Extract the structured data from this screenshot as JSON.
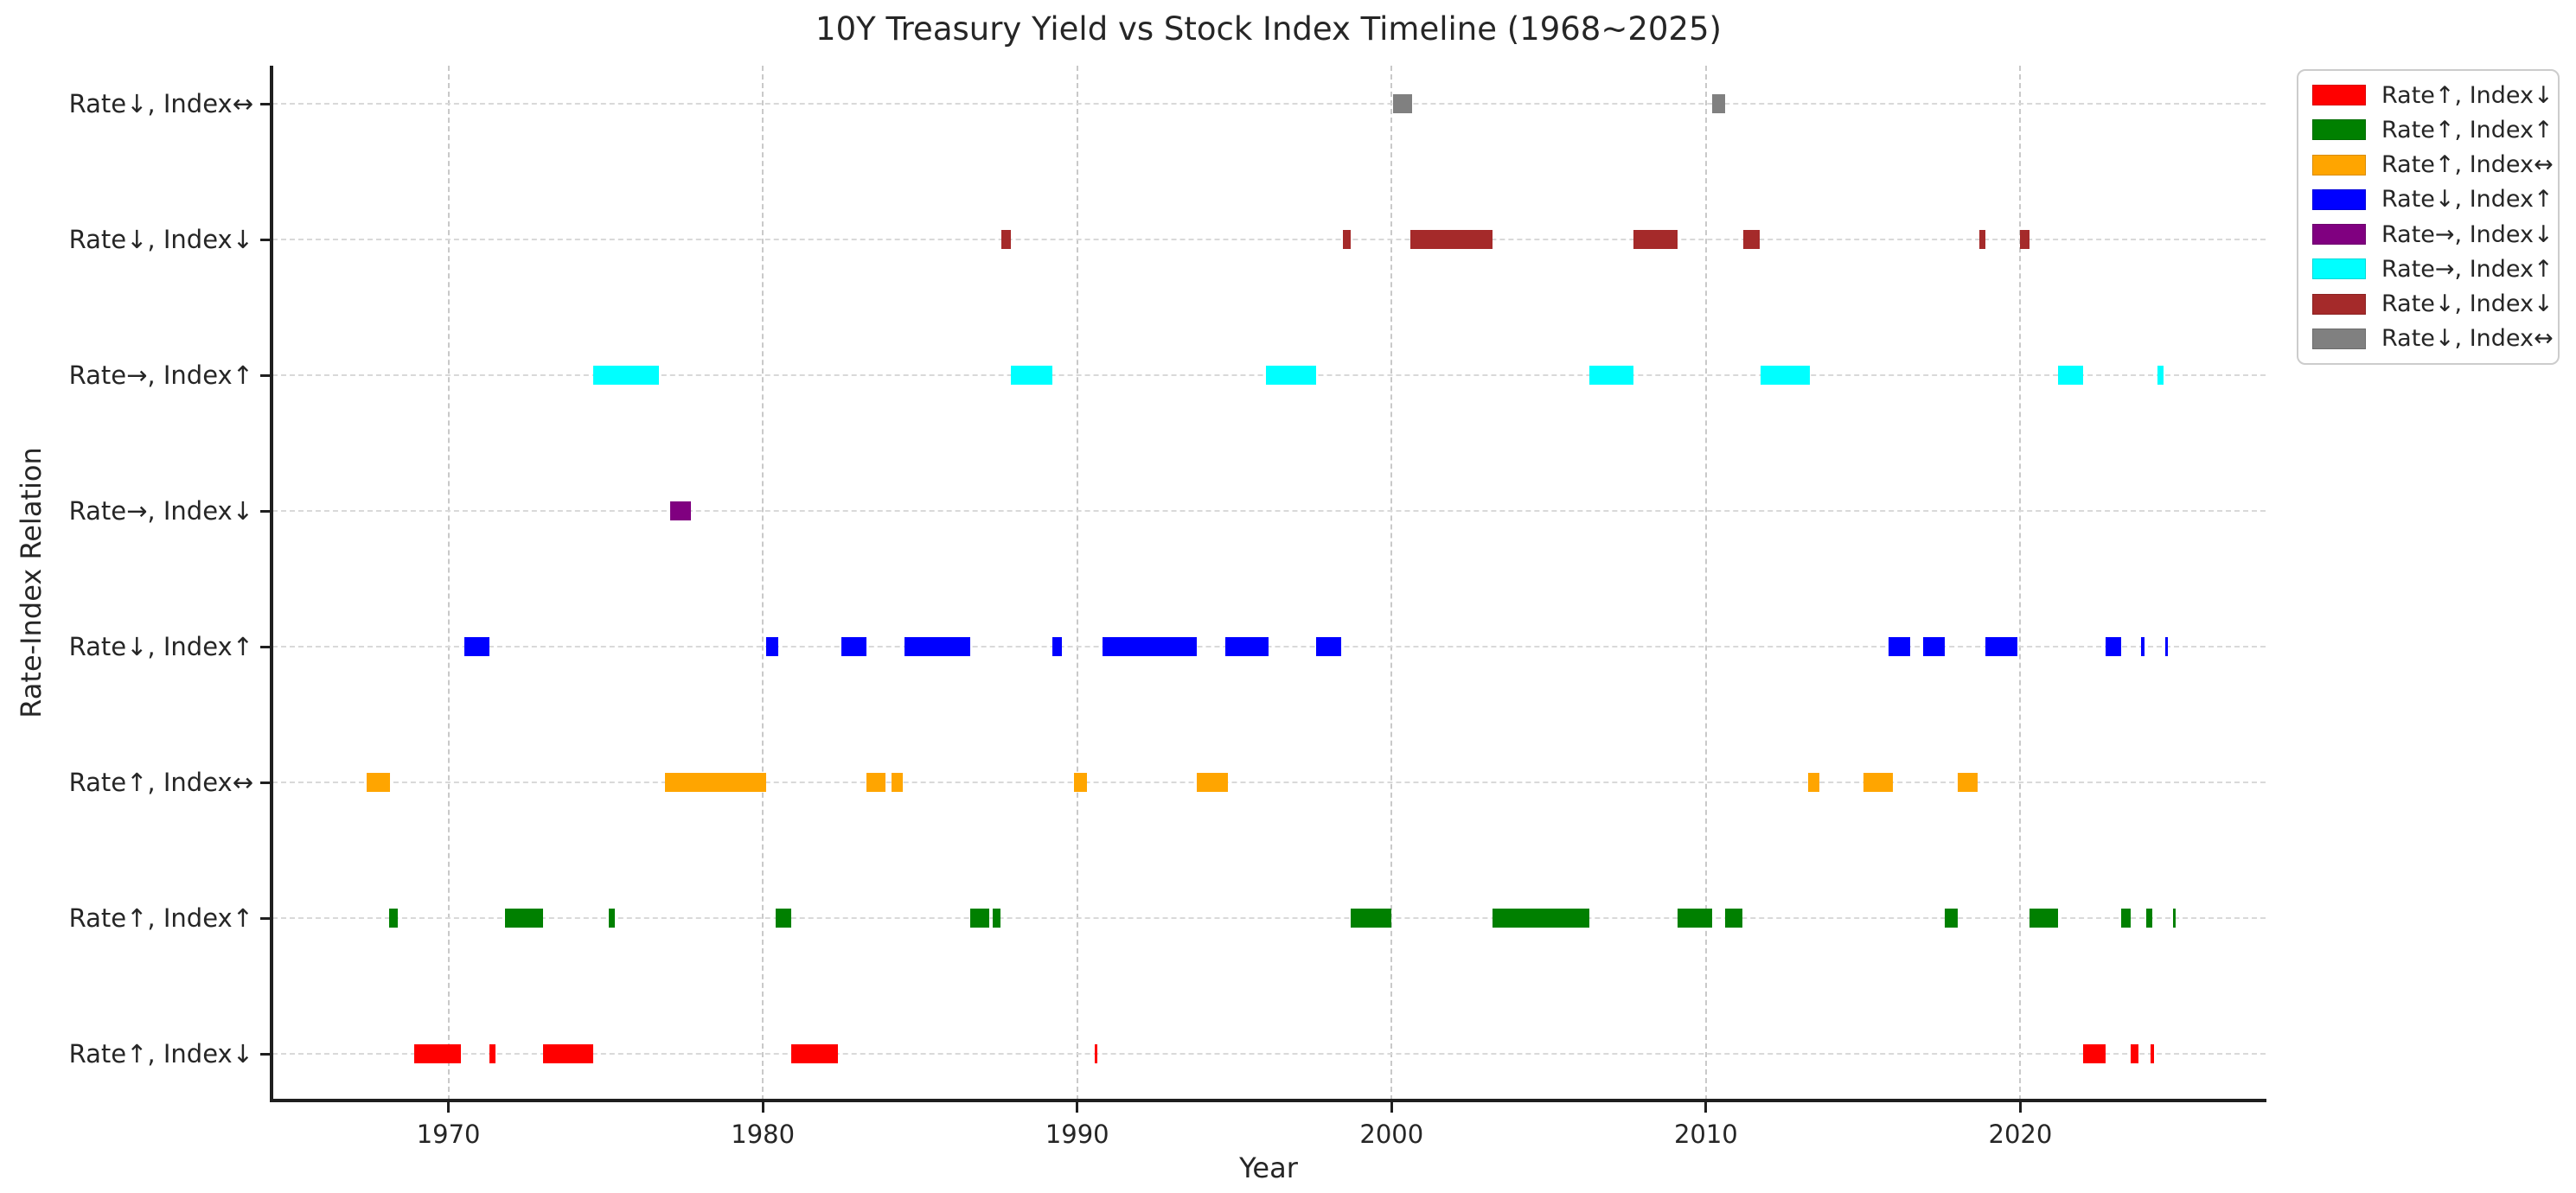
{
  "chart_data": {
    "type": "bar",
    "subtype": "horizontal-interval-timeline",
    "title": "10Y Treasury Yield vs Stock Index Timeline (1968~2025)",
    "xlabel": "Year",
    "ylabel": "Rate-Index Relation",
    "xlim": [
      1964.4,
      2027.8
    ],
    "xticks": [
      1970,
      1980,
      1990,
      2000,
      2010,
      2020
    ],
    "grid": {
      "vertical": "dashed",
      "horizontal": "dashed",
      "color": "#cccccc"
    },
    "legend_position": "outside-upper-right",
    "rows": [
      {
        "label": "Rate↓, Index↔",
        "color": "#808080",
        "intervals": [
          [
            2000.05,
            2000.65
          ],
          [
            2010.2,
            2010.6
          ]
        ]
      },
      {
        "label": "Rate↓, Index↓",
        "color": "#A52A2A",
        "intervals": [
          [
            1987.6,
            1987.9
          ],
          [
            1998.45,
            1998.7
          ],
          [
            2000.6,
            2003.2
          ],
          [
            2007.7,
            2009.1
          ],
          [
            2011.2,
            2011.7
          ],
          [
            2018.7,
            2018.9
          ],
          [
            2020.0,
            2020.3
          ]
        ]
      },
      {
        "label": "Rate→, Index↑",
        "color": "#00FFFF",
        "intervals": [
          [
            1974.6,
            1976.7
          ],
          [
            1987.9,
            1989.2
          ],
          [
            1996.0,
            1997.6
          ],
          [
            2006.3,
            2007.7
          ],
          [
            2011.75,
            2013.3
          ],
          [
            2021.2,
            2022.0
          ],
          [
            2024.35,
            2024.55
          ]
        ]
      },
      {
        "label": "Rate→, Index↓",
        "color": "#800080",
        "intervals": [
          [
            1977.05,
            1977.7
          ]
        ]
      },
      {
        "label": "Rate↓, Index↑",
        "color": "#0000FF",
        "intervals": [
          [
            1970.5,
            1971.3
          ],
          [
            1980.1,
            1980.5
          ],
          [
            1982.5,
            1983.3
          ],
          [
            1984.5,
            1986.6
          ],
          [
            1989.2,
            1989.5
          ],
          [
            1990.8,
            1993.8
          ],
          [
            1994.7,
            1996.1
          ],
          [
            1997.6,
            1998.4
          ],
          [
            2015.8,
            2016.5
          ],
          [
            2016.9,
            2017.6
          ],
          [
            2018.9,
            2019.9
          ],
          [
            2022.7,
            2023.2
          ],
          [
            2023.85,
            2023.95
          ],
          [
            2024.6,
            2024.7
          ]
        ]
      },
      {
        "label": "Rate↑, Index↔",
        "color": "#FFA500",
        "intervals": [
          [
            1967.4,
            1968.15
          ],
          [
            1976.9,
            1980.1
          ],
          [
            1983.3,
            1983.9
          ],
          [
            1984.1,
            1984.45
          ],
          [
            1989.9,
            1990.3
          ],
          [
            1993.8,
            1994.8
          ],
          [
            2013.25,
            2013.6
          ],
          [
            2015.0,
            2015.95
          ],
          [
            2018.0,
            2018.65
          ]
        ]
      },
      {
        "label": "Rate↑, Index↑",
        "color": "#008000",
        "intervals": [
          [
            1968.1,
            1968.4
          ],
          [
            1971.8,
            1973.0
          ],
          [
            1975.1,
            1975.3
          ],
          [
            1980.4,
            1980.9
          ],
          [
            1986.6,
            1987.2
          ],
          [
            1987.3,
            1987.55
          ],
          [
            1998.7,
            2000.0
          ],
          [
            2003.2,
            2006.3
          ],
          [
            2009.1,
            2010.2
          ],
          [
            2010.6,
            2011.15
          ],
          [
            2017.6,
            2018.0
          ],
          [
            2020.3,
            2021.2
          ],
          [
            2023.2,
            2023.5
          ],
          [
            2024.0,
            2024.2
          ],
          [
            2024.85,
            2024.95
          ]
        ]
      },
      {
        "label": "Rate↑, Index↓",
        "color": "#FF0000",
        "intervals": [
          [
            1968.9,
            1970.4
          ],
          [
            1971.3,
            1971.5
          ],
          [
            1973.0,
            1974.6
          ],
          [
            1980.9,
            1982.4
          ],
          [
            1990.55,
            1990.65
          ],
          [
            2022.0,
            2022.7
          ],
          [
            2023.5,
            2023.75
          ],
          [
            2024.15,
            2024.25
          ]
        ]
      }
    ],
    "legend": [
      {
        "label": "Rate↑, Index↓",
        "color": "#FF0000"
      },
      {
        "label": "Rate↑, Index↑",
        "color": "#008000"
      },
      {
        "label": "Rate↑, Index↔",
        "color": "#FFA500"
      },
      {
        "label": "Rate↓, Index↑",
        "color": "#0000FF"
      },
      {
        "label": "Rate→, Index↓",
        "color": "#800080"
      },
      {
        "label": "Rate→, Index↑",
        "color": "#00FFFF"
      },
      {
        "label": "Rate↓, Index↓",
        "color": "#A52A2A"
      },
      {
        "label": "Rate↓, Index↔",
        "color": "#808080"
      }
    ]
  }
}
